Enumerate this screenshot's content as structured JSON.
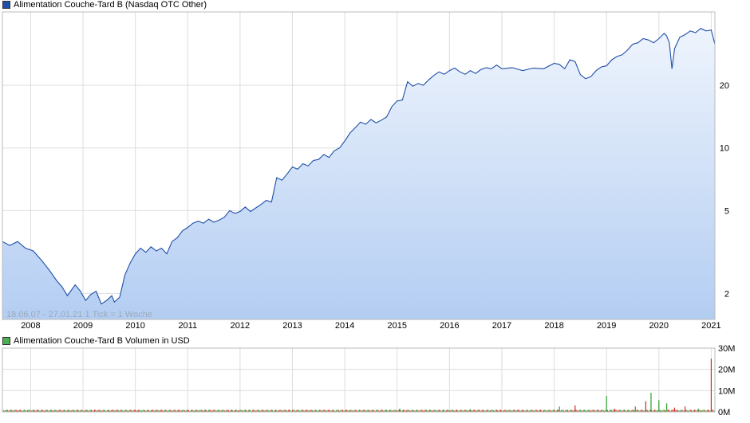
{
  "price_panel": {
    "legend": "Alimentation Couche-Tard B (Nasdaq OTC Other)",
    "info": "18.06.07 - 27.01.21   1 Tick = 1 Woche"
  },
  "volume_panel": {
    "legend": "Alimentation Couche-Tard B Volumen in USD"
  },
  "colors": {
    "line": "#1f4fa8",
    "area_top": "#eef4fd",
    "area_bottom": "#b3cdf2",
    "grid": "#dddddd",
    "volume_up": "#2ca02c",
    "volume_down": "#d62728"
  },
  "chart_data": [
    {
      "type": "area",
      "title": "Alimentation Couche-Tard B (Nasdaq OTC Other)",
      "y_scale": "log",
      "ylim": [
        1.5,
        45
      ],
      "y_ticks": [
        2,
        5,
        10,
        20
      ],
      "x_range": [
        2007.46,
        2021.07
      ],
      "x_ticks": [
        "2008",
        "2009",
        "2010",
        "2011",
        "2012",
        "2013",
        "2014",
        "2015",
        "2016",
        "2017",
        "2018",
        "2019",
        "2020",
        "2021"
      ],
      "grid": true,
      "series": [
        {
          "name": "Alimentation Couche-Tard B",
          "x": [
            2007.46,
            2007.6,
            2007.75,
            2007.9,
            2008.05,
            2008.2,
            2008.35,
            2008.5,
            2008.6,
            2008.7,
            2008.85,
            2008.95,
            2009.05,
            2009.15,
            2009.25,
            2009.35,
            2009.45,
            2009.55,
            2009.6,
            2009.7,
            2009.8,
            2009.9,
            2010.0,
            2010.1,
            2010.2,
            2010.3,
            2010.4,
            2010.5,
            2010.6,
            2010.7,
            2010.8,
            2010.9,
            2011.0,
            2011.1,
            2011.2,
            2011.3,
            2011.4,
            2011.5,
            2011.6,
            2011.7,
            2011.8,
            2011.9,
            2012.0,
            2012.1,
            2012.2,
            2012.3,
            2012.4,
            2012.5,
            2012.6,
            2012.7,
            2012.8,
            2012.9,
            2013.0,
            2013.1,
            2013.2,
            2013.3,
            2013.4,
            2013.5,
            2013.6,
            2013.7,
            2013.8,
            2013.9,
            2014.0,
            2014.1,
            2014.2,
            2014.3,
            2014.4,
            2014.5,
            2014.6,
            2014.7,
            2014.8,
            2014.9,
            2015.0,
            2015.1,
            2015.2,
            2015.3,
            2015.4,
            2015.5,
            2015.6,
            2015.7,
            2015.8,
            2015.9,
            2016.0,
            2016.1,
            2016.2,
            2016.3,
            2016.4,
            2016.5,
            2016.6,
            2016.7,
            2016.8,
            2016.9,
            2017.0,
            2017.2,
            2017.4,
            2017.6,
            2017.8,
            2018.0,
            2018.1,
            2018.2,
            2018.3,
            2018.4,
            2018.5,
            2018.6,
            2018.7,
            2018.8,
            2018.9,
            2019.0,
            2019.1,
            2019.2,
            2019.3,
            2019.4,
            2019.5,
            2019.6,
            2019.7,
            2019.8,
            2019.9,
            2020.0,
            2020.1,
            2020.15,
            2020.2,
            2020.25,
            2020.3,
            2020.4,
            2020.5,
            2020.6,
            2020.7,
            2020.8,
            2020.9,
            2021.0,
            2021.07
          ],
          "y": [
            3.55,
            3.4,
            3.55,
            3.3,
            3.2,
            2.9,
            2.6,
            2.3,
            2.15,
            1.95,
            2.2,
            2.05,
            1.85,
            1.98,
            2.05,
            1.78,
            1.85,
            1.95,
            1.82,
            1.92,
            2.45,
            2.8,
            3.1,
            3.3,
            3.15,
            3.35,
            3.2,
            3.3,
            3.1,
            3.55,
            3.7,
            4.0,
            4.15,
            4.35,
            4.45,
            4.35,
            4.55,
            4.4,
            4.5,
            4.65,
            5.0,
            4.85,
            4.95,
            5.2,
            4.95,
            5.15,
            5.35,
            5.6,
            5.5,
            7.2,
            7.0,
            7.5,
            8.1,
            7.9,
            8.4,
            8.2,
            8.7,
            8.8,
            9.3,
            9.0,
            9.7,
            10.0,
            10.8,
            11.8,
            12.5,
            13.3,
            13.0,
            13.7,
            13.2,
            13.6,
            14.1,
            15.8,
            16.8,
            17.0,
            20.8,
            19.8,
            20.4,
            20.0,
            21.2,
            22.3,
            23.2,
            22.6,
            23.5,
            24.2,
            23.2,
            22.6,
            23.5,
            22.8,
            23.8,
            24.3,
            24.0,
            25.0,
            24.0,
            24.3,
            23.5,
            24.2,
            24.0,
            25.5,
            25.2,
            24.0,
            26.5,
            26.0,
            22.5,
            21.5,
            22.0,
            23.5,
            24.5,
            24.8,
            26.5,
            27.5,
            28.0,
            29.5,
            31.5,
            32.0,
            33.5,
            33.0,
            32.0,
            33.5,
            35.5,
            34.5,
            32.0,
            24.0,
            30.0,
            34.0,
            35.0,
            36.5,
            35.8,
            37.5,
            36.5,
            36.8,
            31.5
          ]
        }
      ]
    },
    {
      "type": "bar",
      "title": "Alimentation Couche-Tard B Volumen in USD",
      "ylim": [
        0,
        30
      ],
      "y_ticks": [
        "0M",
        "10M",
        "20M",
        "30M"
      ],
      "grid": true,
      "spikes": [
        {
          "x": 2015.05,
          "value": 1.5,
          "color": "green"
        },
        {
          "x": 2016.4,
          "value": 1.2,
          "color": "green"
        },
        {
          "x": 2018.1,
          "value": 2.5,
          "color": "green"
        },
        {
          "x": 2018.4,
          "value": 3.0,
          "color": "red"
        },
        {
          "x": 2019.0,
          "value": 7.5,
          "color": "green"
        },
        {
          "x": 2019.15,
          "value": 1.5,
          "color": "red"
        },
        {
          "x": 2019.55,
          "value": 2.5,
          "color": "green"
        },
        {
          "x": 2019.75,
          "value": 5.0,
          "color": "red"
        },
        {
          "x": 2019.85,
          "value": 9.0,
          "color": "green"
        },
        {
          "x": 2020.0,
          "value": 5.5,
          "color": "green"
        },
        {
          "x": 2020.15,
          "value": 4.0,
          "color": "green"
        },
        {
          "x": 2020.3,
          "value": 2.0,
          "color": "red"
        },
        {
          "x": 2020.5,
          "value": 2.5,
          "color": "red"
        },
        {
          "x": 2020.75,
          "value": 1.5,
          "color": "green"
        },
        {
          "x": 2021.0,
          "value": 25.0,
          "color": "red"
        }
      ]
    }
  ]
}
